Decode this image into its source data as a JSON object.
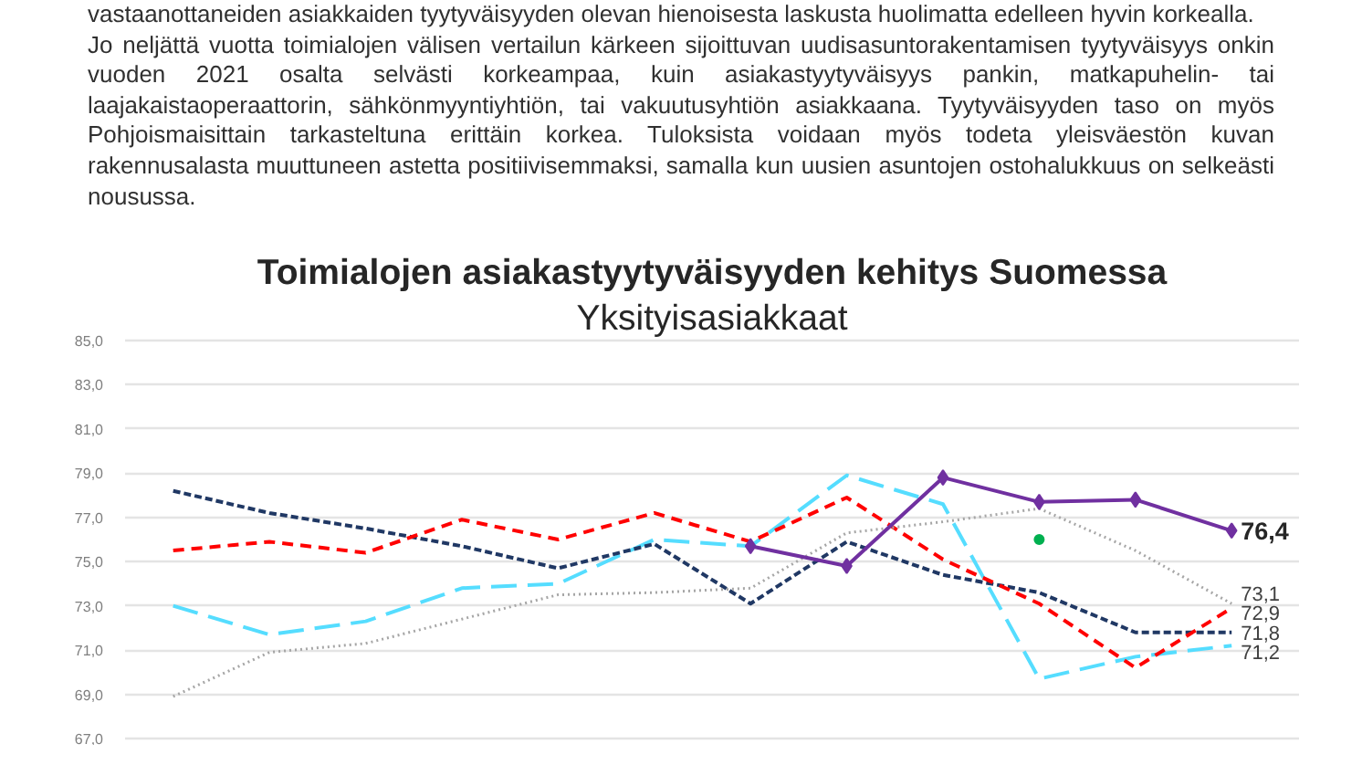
{
  "chart_data": {
    "type": "line",
    "title": "Toimialojen asiakastyytyväisyyden kehitys Suomessa",
    "subtitle": "Yksityisasiakkaat",
    "annotations": [
      "vastaanottaneiden asiakkaiden tyytyväisyyden olevan hienoisesta laskusta huolimatta edelleen hyvin korkealla.",
      "Jo neljättä vuotta toimialojen välisen vertailun kärkeen sijoittuvan uudisasuntorakentamisen tyytyväisyys onkin vuoden 2021 osalta selvästi korkeampaa, kuin asiakastyytyväisyys pankin, matkapuhelin- tai laajakaistaoperaattorin, sähkönmyyntiyhtiön, tai vakuutusyhtiön asiakkaana. Tyytyväisyyden taso on myös Pohjoismaisittain tarkasteltuna erittäin korkea. Tuloksista voidaan myös todeta yleisväestön kuvan rakennusalasta muuttuneen astetta positiivisemmaksi, samalla kun uusien asuntojen ostohalukkuus on selkeästi nousussa."
    ],
    "categories": [
      null,
      null,
      null,
      null,
      null,
      null,
      null,
      null,
      null,
      null,
      null,
      null
    ],
    "ylim": [
      67,
      85
    ],
    "yticks": [
      {
        "value": 67,
        "label": "67,0"
      },
      {
        "value": 69,
        "label": "69,0"
      },
      {
        "value": 71,
        "label": "71,0"
      },
      {
        "value": 73,
        "label": "73,0"
      },
      {
        "value": 75,
        "label": "75,0"
      },
      {
        "value": 77,
        "label": "77,0"
      },
      {
        "value": 79,
        "label": "79,0"
      },
      {
        "value": 81,
        "label": "81,0"
      },
      {
        "value": 83,
        "label": "83,0"
      },
      {
        "value": 85,
        "label": "85,0"
      }
    ],
    "grid": "y",
    "series": [
      {
        "color": "#7030a0",
        "line_style": "solid",
        "marker": "diamond",
        "values": [
          null,
          null,
          null,
          null,
          null,
          null,
          75.7,
          74.8,
          78.8,
          77.7,
          77.8,
          76.4
        ],
        "value_labels": [
          null,
          null,
          null,
          null,
          null,
          null,
          null,
          null,
          null,
          null,
          null,
          "76,4"
        ]
      },
      {
        "color": "#a6a6a6",
        "line_style": "dotted",
        "values": [
          68.9,
          70.9,
          71.3,
          72.4,
          73.5,
          73.6,
          73.8,
          76.3,
          76.8,
          77.4,
          75.5,
          73.1
        ],
        "value_labels": [
          null,
          null,
          null,
          null,
          null,
          null,
          null,
          null,
          null,
          null,
          null,
          "73,1"
        ]
      },
      {
        "color": "#ff0000",
        "line_style": "dashed",
        "values": [
          75.5,
          75.9,
          75.4,
          76.9,
          76.0,
          77.2,
          75.9,
          77.9,
          75.1,
          73.1,
          70.2,
          72.9
        ],
        "value_labels": [
          null,
          null,
          null,
          null,
          null,
          null,
          null,
          null,
          null,
          null,
          null,
          "72,9"
        ]
      },
      {
        "color": "#203864",
        "line_style": "dashed",
        "values": [
          78.2,
          77.2,
          76.5,
          75.7,
          74.7,
          75.8,
          73.1,
          75.9,
          74.4,
          73.6,
          71.8,
          71.8
        ],
        "value_labels": [
          null,
          null,
          null,
          null,
          null,
          null,
          null,
          null,
          null,
          null,
          null,
          "71,8"
        ]
      },
      {
        "color": "#55ddff",
        "line_style": "dashed",
        "values": [
          73.0,
          71.7,
          72.3,
          73.8,
          74.0,
          76.0,
          75.7,
          78.9,
          77.6,
          69.7,
          70.7,
          71.2
        ],
        "value_labels": [
          null,
          null,
          null,
          null,
          null,
          null,
          null,
          null,
          null,
          null,
          null,
          "71,2"
        ]
      },
      {
        "type": "scatter",
        "color": "#00b050",
        "marker": "circle",
        "values": [
          null,
          null,
          null,
          null,
          null,
          null,
          null,
          null,
          null,
          76.0,
          null,
          null
        ]
      }
    ]
  }
}
